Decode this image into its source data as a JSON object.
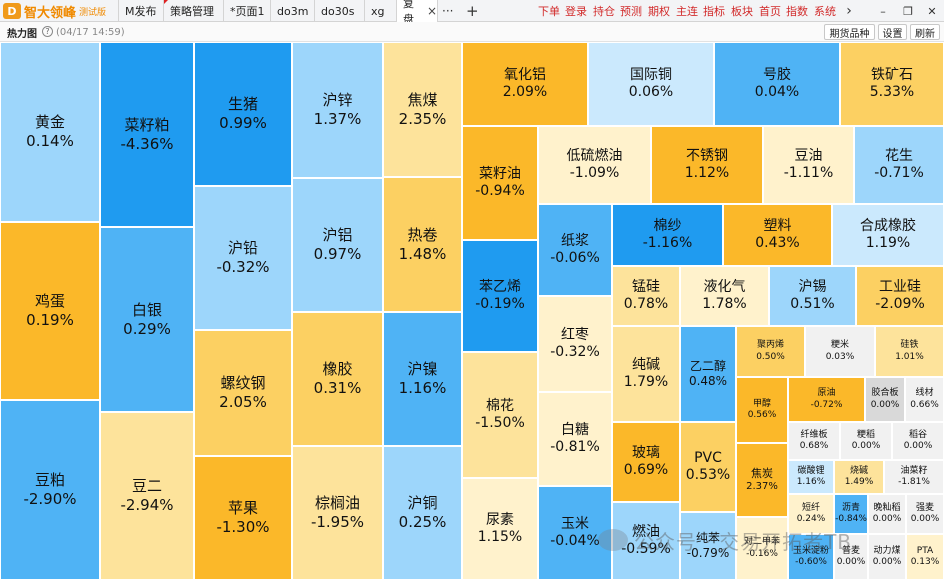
{
  "app": {
    "brand": "智大领峰",
    "edition": "测试版",
    "logo_letter": "D"
  },
  "tabs": [
    {
      "label": "M发布",
      "active": false
    },
    {
      "label": "策略管理",
      "active": false
    },
    {
      "label": "*页面1",
      "active": false
    },
    {
      "label": "do3m",
      "active": false
    },
    {
      "label": "do30s",
      "active": false
    },
    {
      "label": "xg",
      "active": false
    },
    {
      "label": "复盘",
      "active": true
    }
  ],
  "tab_tools": {
    "more": "···",
    "add": "+"
  },
  "menu": [
    "下单",
    "登录",
    "持仓",
    "预测",
    "期权",
    "主连",
    "指标",
    "板块",
    "首页",
    "指数",
    "系统"
  ],
  "window_controls": {
    "next": "›",
    "minimize": "–",
    "restore": "❐",
    "close": "✕"
  },
  "panel": {
    "title": "热力图",
    "timestamp": "(04/17 14:59)",
    "buttons": {
      "futures_select": "期货品种",
      "settings": "设置",
      "refresh": "刷新"
    }
  },
  "watermark": "公众号 · 交易开拓者TB",
  "colors": {
    "strong_down": "#1f9bf0",
    "mid_down": "#4fb3f5",
    "light_down": "#9dd6fb",
    "strong_up": "#fbb829",
    "mid_up": "#fcd062",
    "light_up": "#fde39b",
    "menu_red": "#d22a2a"
  },
  "heatmap": {
    "cells": [
      {
        "name": "黄金",
        "change": "0.14%"
      },
      {
        "name": "鸡蛋",
        "change": "0.19%"
      },
      {
        "name": "豆粕",
        "change": "-2.90%"
      },
      {
        "name": "菜籽粕",
        "change": "-4.36%"
      },
      {
        "name": "白银",
        "change": "0.29%"
      },
      {
        "name": "豆二",
        "change": "-2.94%"
      },
      {
        "name": "生猪",
        "change": "0.99%"
      },
      {
        "name": "沪铅",
        "change": "-0.32%"
      },
      {
        "name": "螺纹钢",
        "change": "2.05%"
      },
      {
        "name": "苹果",
        "change": "-1.30%"
      },
      {
        "name": "沪锌",
        "change": "1.37%"
      },
      {
        "name": "沪铝",
        "change": "0.97%"
      },
      {
        "name": "橡胶",
        "change": "0.31%"
      },
      {
        "name": "棕榈油",
        "change": "-1.95%"
      },
      {
        "name": "焦煤",
        "change": "2.35%"
      },
      {
        "name": "热卷",
        "change": "1.48%"
      },
      {
        "name": "沪镍",
        "change": "1.16%"
      },
      {
        "name": "沪铜",
        "change": "0.25%"
      },
      {
        "name": "氧化铝",
        "change": "2.09%"
      },
      {
        "name": "国际铜",
        "change": "0.06%"
      },
      {
        "name": "号胶",
        "change": "0.04%"
      },
      {
        "name": "铁矿石",
        "change": "5.33%"
      },
      {
        "name": "菜籽油",
        "change": "-0.94%"
      },
      {
        "name": "低硫燃油",
        "change": "-1.09%"
      },
      {
        "name": "不锈钢",
        "change": "1.12%"
      },
      {
        "name": "豆油",
        "change": "-1.11%"
      },
      {
        "name": "花生",
        "change": "-0.71%"
      },
      {
        "name": "纸浆",
        "change": "-0.06%"
      },
      {
        "name": "棉纱",
        "change": "-1.16%"
      },
      {
        "name": "塑料",
        "change": "0.43%"
      },
      {
        "name": "合成橡胶",
        "change": "1.19%"
      },
      {
        "name": "苯乙烯",
        "change": "-0.19%"
      },
      {
        "name": "锰硅",
        "change": "0.78%"
      },
      {
        "name": "液化气",
        "change": "1.78%"
      },
      {
        "name": "沪锡",
        "change": "0.51%"
      },
      {
        "name": "工业硅",
        "change": "-2.09%"
      },
      {
        "name": "红枣",
        "change": "-0.32%"
      },
      {
        "name": "纯碱",
        "change": "1.79%"
      },
      {
        "name": "乙二醇",
        "change": "0.48%"
      },
      {
        "name": "聚丙烯",
        "change": "0.50%"
      },
      {
        "name": "粳米",
        "change": "0.03%"
      },
      {
        "name": "硅铁",
        "change": "1.01%"
      },
      {
        "name": "甲醇",
        "change": "0.56%"
      },
      {
        "name": "原油",
        "change": "-0.72%"
      },
      {
        "name": "胶合板",
        "change": "0.00%"
      },
      {
        "name": "线材",
        "change": "0.66%"
      },
      {
        "name": "纤维板",
        "change": "0.68%"
      },
      {
        "name": "粳稻",
        "change": "0.00%"
      },
      {
        "name": "稻谷",
        "change": "0.00%"
      },
      {
        "name": "棉花",
        "change": "-1.50%"
      },
      {
        "name": "白糖",
        "change": "-0.81%"
      },
      {
        "name": "玻璃",
        "change": "0.69%"
      },
      {
        "name": "PVC",
        "change": "0.53%"
      },
      {
        "name": "焦炭",
        "change": "2.37%"
      },
      {
        "name": "碳酸锂",
        "change": "1.16%"
      },
      {
        "name": "烧碱",
        "change": "1.49%"
      },
      {
        "name": "油菜籽",
        "change": "-1.81%"
      },
      {
        "name": "尿素",
        "change": "1.15%"
      },
      {
        "name": "玉米",
        "change": "-0.04%"
      },
      {
        "name": "燃油",
        "change": "-0.59%"
      },
      {
        "name": "纯苯",
        "change": "-0.79%"
      },
      {
        "name": "对二甲苯",
        "change": "-0.16%"
      },
      {
        "name": "短纤",
        "change": "0.24%"
      },
      {
        "name": "沥青",
        "change": "-0.84%"
      },
      {
        "name": "晚籼稻",
        "change": "0.00%"
      },
      {
        "name": "强麦",
        "change": "0.00%"
      },
      {
        "name": "玉米淀粉",
        "change": "-0.60%"
      },
      {
        "name": "普麦",
        "change": "0.00%"
      },
      {
        "name": "动力煤",
        "change": "0.00%"
      },
      {
        "name": "PTA",
        "change": "0.13%"
      }
    ]
  }
}
